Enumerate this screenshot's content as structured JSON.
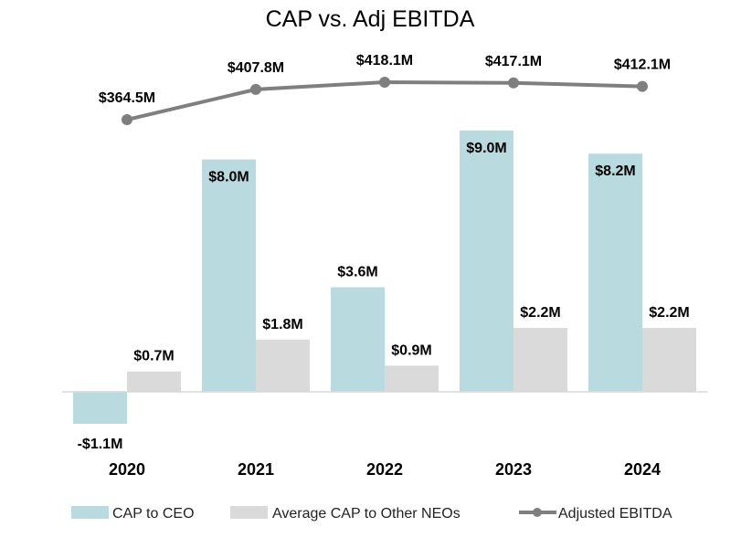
{
  "chart_data": {
    "type": "bar+line",
    "title": "CAP vs. Adj EBITDA",
    "categories": [
      "2020",
      "2021",
      "2022",
      "2023",
      "2024"
    ],
    "series": [
      {
        "name": "CAP to CEO",
        "type": "bar",
        "color": "#b9dadf",
        "values": [
          -1.1,
          8.0,
          3.6,
          9.0,
          8.2
        ],
        "labels": [
          "-$1.1M",
          "$8.0M",
          "$3.6M",
          "$9.0M",
          "$8.2M"
        ]
      },
      {
        "name": "Average CAP to Other NEOs",
        "type": "bar",
        "color": "#dadada",
        "values": [
          0.7,
          1.8,
          0.9,
          2.2,
          2.2
        ],
        "labels": [
          "$0.7M",
          "$1.8M",
          "$0.9M",
          "$2.2M",
          "$2.2M"
        ]
      },
      {
        "name": "Adjusted EBITDA",
        "type": "line",
        "color": "#7f7f7f",
        "axis": "secondary",
        "values": [
          364.5,
          407.8,
          418.1,
          417.1,
          412.1
        ],
        "labels": [
          "$364.5M",
          "$407.8M",
          "$418.1M",
          "$417.1M",
          "$412.1M"
        ]
      }
    ],
    "units": "$M",
    "grid": false,
    "legend": "bottom"
  }
}
